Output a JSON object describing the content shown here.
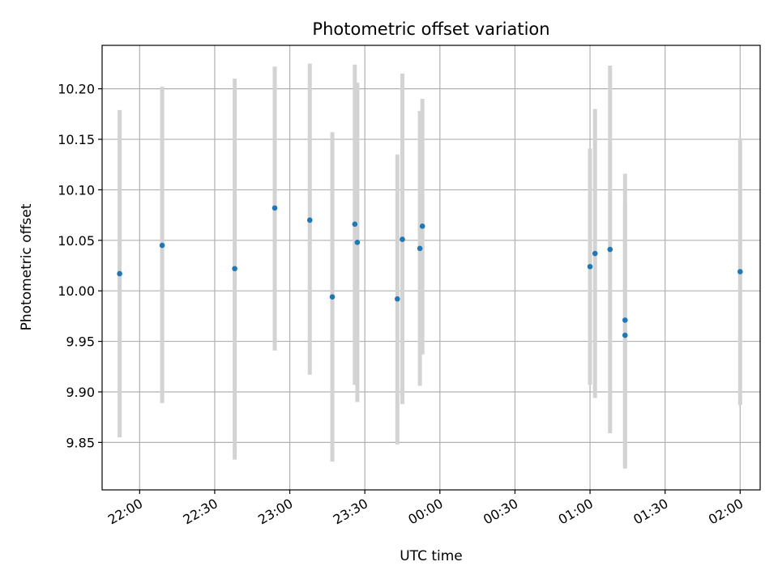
{
  "chart_data": {
    "type": "scatter",
    "title": "Photometric offset variation",
    "xlabel": "UTC time",
    "ylabel": "Photometric offset",
    "x_type": "time",
    "xlim": [
      "21:45",
      "02:08"
    ],
    "ylim": [
      9.803,
      10.243
    ],
    "x_ticks": [
      "22:00",
      "22:30",
      "23:00",
      "23:30",
      "00:00",
      "00:30",
      "01:00",
      "01:30",
      "02:00"
    ],
    "y_ticks": [
      9.85,
      9.9,
      9.95,
      10.0,
      10.05,
      10.1,
      10.15,
      10.2
    ],
    "y_tick_labels": [
      "9.85",
      "9.90",
      "9.95",
      "10.00",
      "10.05",
      "10.10",
      "10.15",
      "10.20"
    ],
    "grid": true,
    "colors": {
      "point": "#1f77b4",
      "errorbar": "#d3d3d3"
    },
    "series": [
      {
        "points": [
          {
            "x": "21:52",
            "y": 10.017,
            "ylow": 9.855,
            "yhigh": 10.179
          },
          {
            "x": "22:09",
            "y": 10.045,
            "ylow": 9.889,
            "yhigh": 10.202
          },
          {
            "x": "22:38",
            "y": 10.022,
            "ylow": 9.833,
            "yhigh": 10.21
          },
          {
            "x": "22:54",
            "y": 10.082,
            "ylow": 9.941,
            "yhigh": 10.222
          },
          {
            "x": "23:08",
            "y": 10.07,
            "ylow": 9.917,
            "yhigh": 10.225
          },
          {
            "x": "23:17",
            "y": 9.994,
            "ylow": 9.831,
            "yhigh": 10.157
          },
          {
            "x": "23:26",
            "y": 10.066,
            "ylow": 9.907,
            "yhigh": 10.224
          },
          {
            "x": "23:27",
            "y": 10.048,
            "ylow": 9.89,
            "yhigh": 10.206
          },
          {
            "x": "23:43",
            "y": 9.992,
            "ylow": 9.848,
            "yhigh": 10.135
          },
          {
            "x": "23:45",
            "y": 10.051,
            "ylow": 9.888,
            "yhigh": 10.215
          },
          {
            "x": "23:52",
            "y": 10.042,
            "ylow": 9.906,
            "yhigh": 10.178
          },
          {
            "x": "23:53",
            "y": 10.064,
            "ylow": 9.937,
            "yhigh": 10.19
          },
          {
            "x": "01:00",
            "y": 10.024,
            "ylow": 9.907,
            "yhigh": 10.141
          },
          {
            "x": "01:02",
            "y": 10.037,
            "ylow": 9.894,
            "yhigh": 10.18
          },
          {
            "x": "01:08",
            "y": 10.041,
            "ylow": 9.859,
            "yhigh": 10.223
          },
          {
            "x": "01:14",
            "y": 9.971,
            "ylow": 9.824,
            "yhigh": 10.116
          },
          {
            "x": "01:14",
            "y": 9.956,
            "ylow": 9.826,
            "yhigh": 10.085
          },
          {
            "x": "02:00",
            "y": 10.019,
            "ylow": 9.887,
            "yhigh": 10.151
          }
        ]
      }
    ]
  }
}
